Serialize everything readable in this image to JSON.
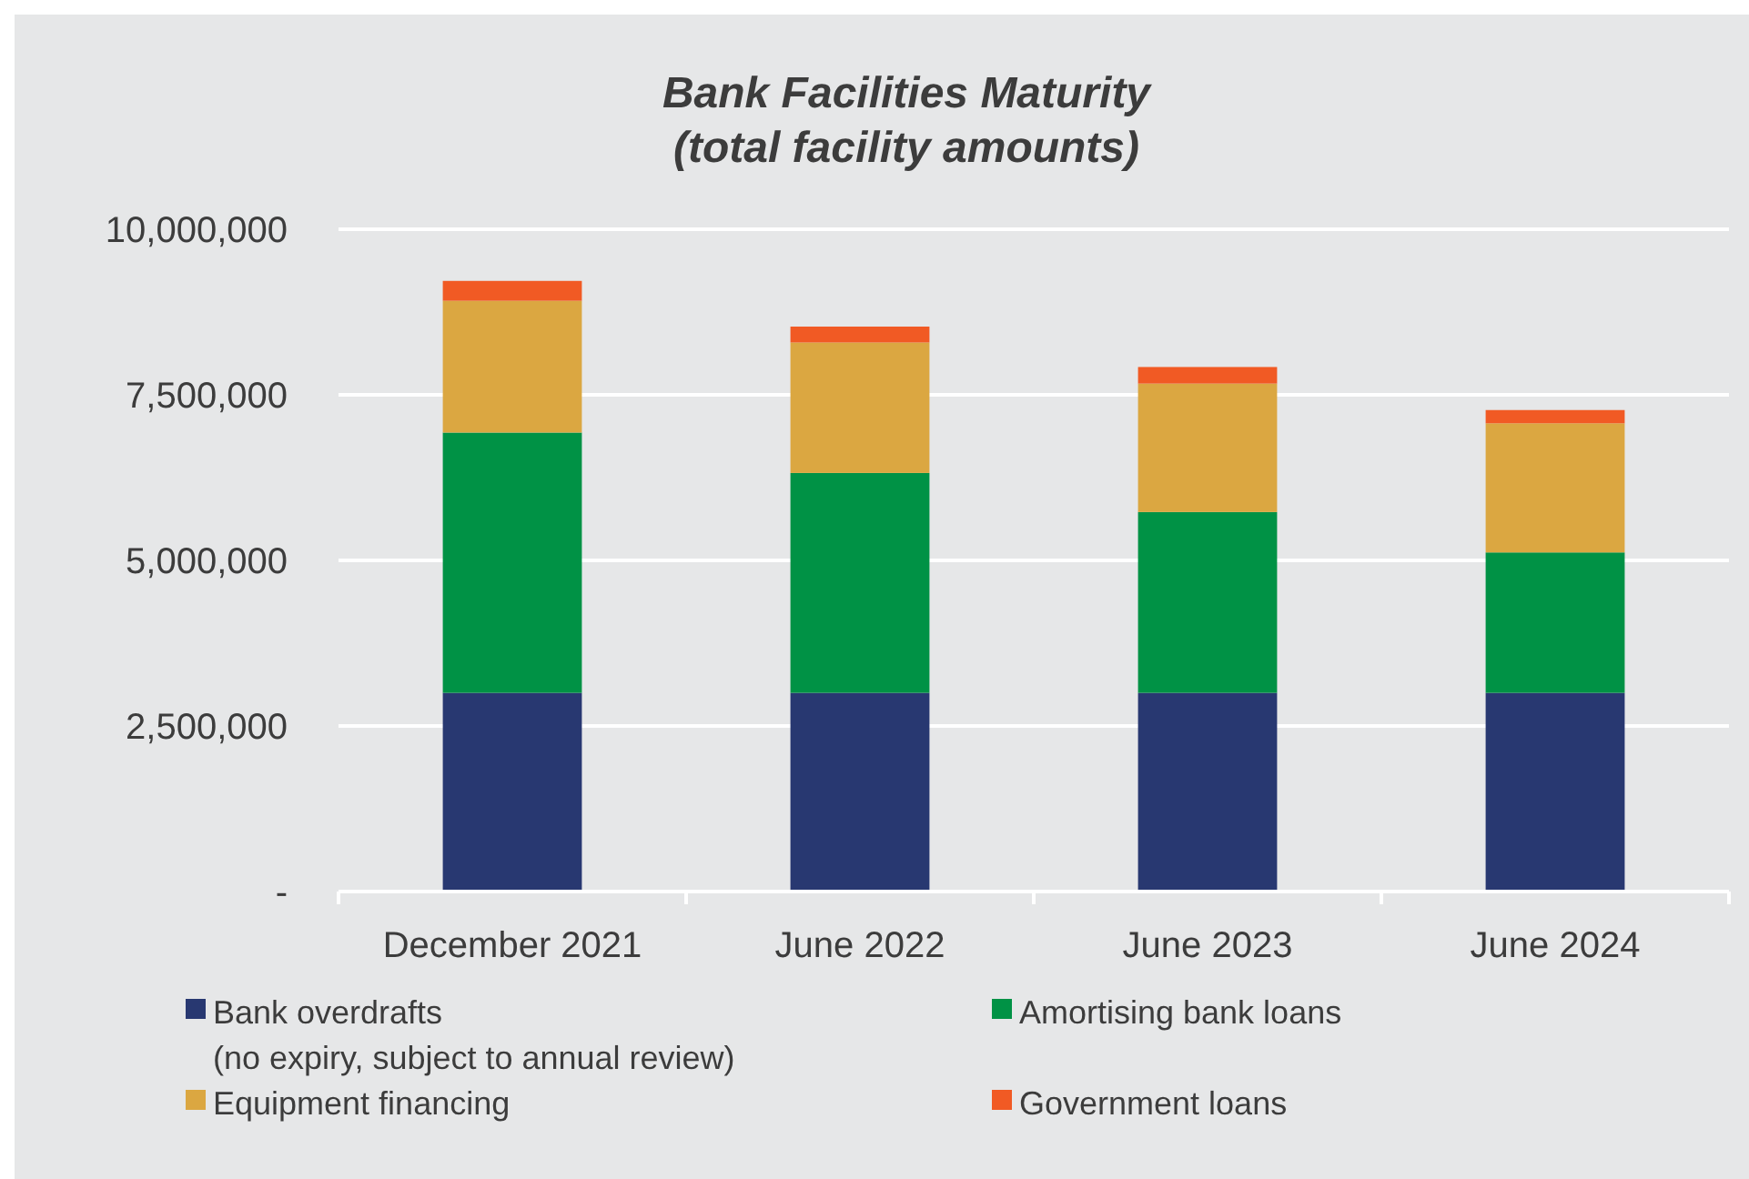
{
  "chart_data": {
    "type": "bar",
    "title": "Bank Facilities Maturity\n(total facility amounts)",
    "categories": [
      "December 2021",
      "June 2022",
      "June 2023",
      "June 2024"
    ],
    "stacked": true,
    "series": [
      {
        "name": "Bank overdrafts\n(no expiry, subject to annual review)",
        "color": "#283871",
        "values": [
          3000000,
          3000000,
          3000000,
          3000000
        ]
      },
      {
        "name": "Amortising bank loans",
        "color": "#009245",
        "values": [
          3930000,
          3320000,
          2730000,
          2120000
        ]
      },
      {
        "name": "Equipment financing",
        "color": "#dba741",
        "values": [
          1990000,
          1970000,
          1940000,
          1950000
        ]
      },
      {
        "name": "Government loans",
        "color": "#f15a24",
        "values": [
          300000,
          240000,
          250000,
          200000
        ]
      }
    ],
    "ylim": [
      0,
      10000000
    ],
    "yticks": [
      {
        "value": 0,
        "label": "-"
      },
      {
        "value": 2500000,
        "label": "2,500,000"
      },
      {
        "value": 5000000,
        "label": "5,000,000"
      },
      {
        "value": 7500000,
        "label": "7,500,000"
      },
      {
        "value": 10000000,
        "label": "10,000,000"
      }
    ],
    "grid": "y",
    "legend": "bottom"
  }
}
